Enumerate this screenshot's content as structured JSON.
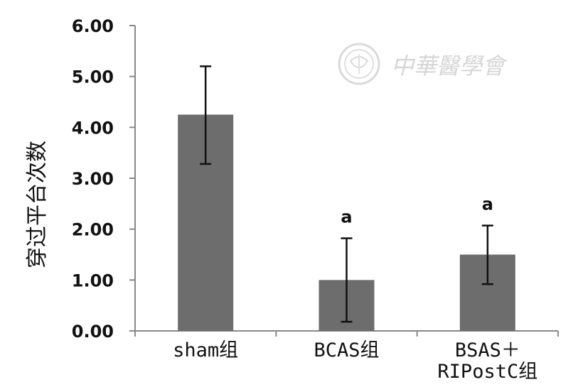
{
  "chart_data": {
    "type": "bar",
    "ylabel": "穿过平台次数",
    "xlabel": "",
    "ylim": [
      0,
      6
    ],
    "yticks": [
      "0.00",
      "1.00",
      "2.00",
      "3.00",
      "4.00",
      "5.00",
      "6.00"
    ],
    "ytick_values": [
      0,
      1,
      2,
      3,
      4,
      5,
      6
    ],
    "categories": [
      [
        "sham组"
      ],
      [
        "BCAS组"
      ],
      [
        "BSAS＋",
        "RIPostC组"
      ]
    ],
    "values": [
      4.25,
      1.0,
      1.5
    ],
    "error_upper": [
      5.2,
      1.82,
      2.07
    ],
    "error_lower": [
      3.28,
      0.18,
      0.92
    ],
    "significance": [
      "",
      "a",
      "a"
    ],
    "grid": false,
    "colors": {
      "bar": "#6d6d6d",
      "axis": "#888888",
      "error_bar": "#111111"
    }
  },
  "watermark": {
    "text": "中華醫學會"
  }
}
